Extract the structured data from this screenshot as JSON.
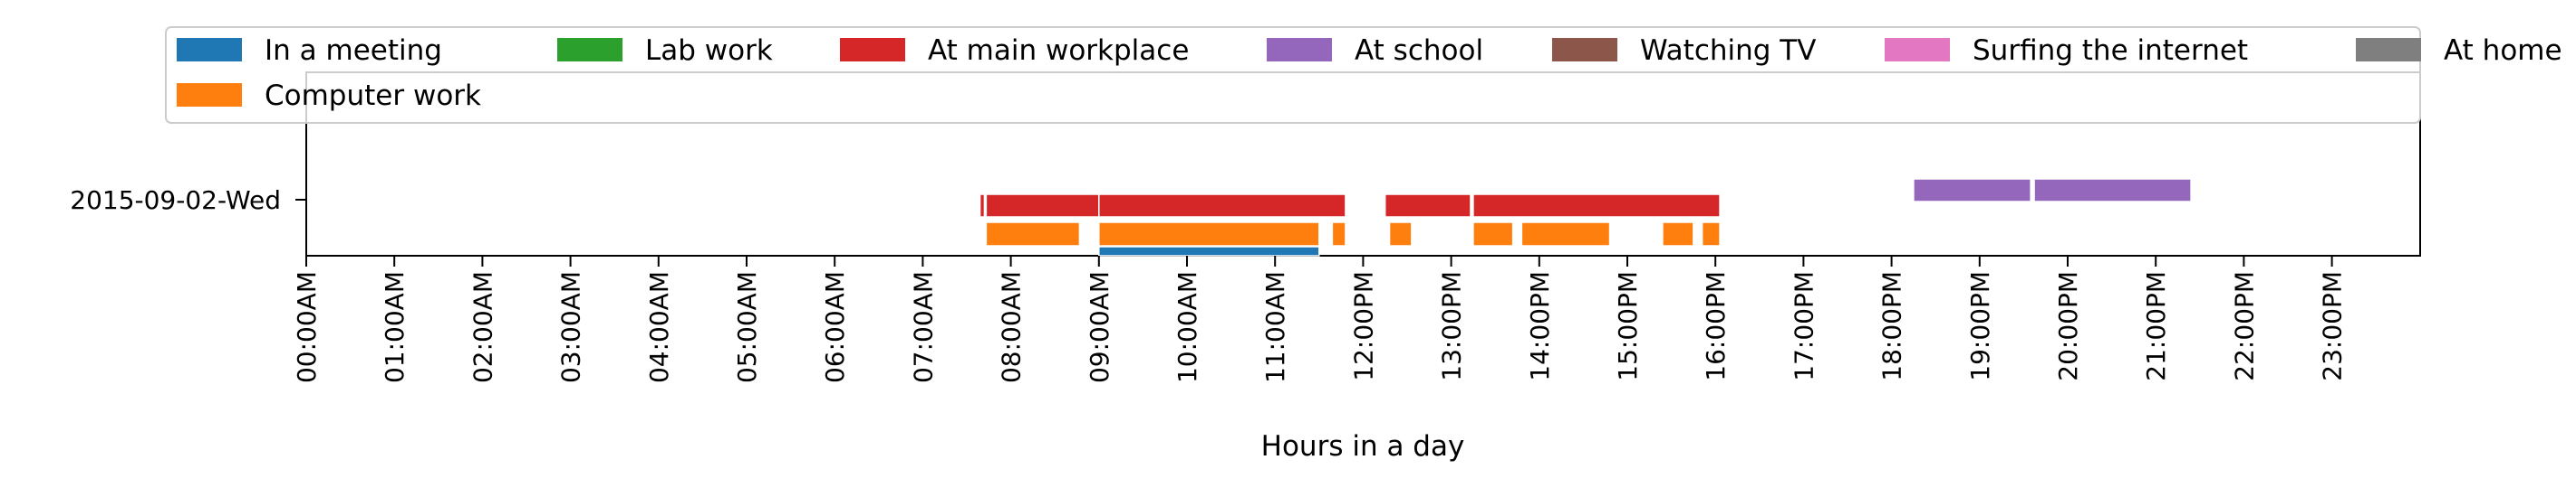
{
  "chart_data": {
    "type": "timeline",
    "title": "",
    "xlabel": "Hours in a day",
    "ylabel": "",
    "xlim": [
      0,
      24
    ],
    "day_label": "2015-09-02-Wed",
    "x_tick_labels": [
      "00:00AM",
      "01:00AM",
      "02:00AM",
      "03:00AM",
      "04:00AM",
      "05:00AM",
      "06:00AM",
      "07:00AM",
      "08:00AM",
      "09:00AM",
      "10:00AM",
      "11:00AM",
      "12:00PM",
      "13:00PM",
      "14:00PM",
      "15:00PM",
      "16:00PM",
      "17:00PM",
      "18:00PM",
      "19:00PM",
      "20:00PM",
      "21:00PM",
      "22:00PM",
      "23:00PM"
    ],
    "legend_position": "top",
    "grid": false,
    "activities": [
      {
        "label": "In a meeting",
        "color": "#1f77b4",
        "intervals": [
          [
            9.0,
            11.5
          ]
        ]
      },
      {
        "label": "Computer work",
        "color": "#ff7f0e",
        "intervals": [
          [
            7.72,
            8.78
          ],
          [
            9.0,
            11.5
          ],
          [
            11.65,
            11.8
          ],
          [
            12.3,
            12.55
          ],
          [
            13.25,
            13.7
          ],
          [
            13.8,
            14.8
          ],
          [
            15.4,
            15.75
          ],
          [
            15.85,
            16.05
          ]
        ]
      },
      {
        "label": "Lab work",
        "color": "#2ca02c",
        "intervals": []
      },
      {
        "label": "At main workplace",
        "color": "#d62728",
        "intervals": [
          [
            7.65,
            7.7
          ],
          [
            7.72,
            9.0
          ],
          [
            9.0,
            11.8
          ],
          [
            12.25,
            13.22
          ],
          [
            13.25,
            16.05
          ]
        ]
      },
      {
        "label": "At school",
        "color": "#9467bd",
        "intervals": [
          [
            18.25,
            19.58
          ],
          [
            19.62,
            21.4
          ]
        ]
      },
      {
        "label": "Watching TV",
        "color": "#8c564b",
        "intervals": []
      },
      {
        "label": "Surfing the internet",
        "color": "#e377c2",
        "intervals": []
      },
      {
        "label": "At home",
        "color": "#7f7f7f",
        "intervals": []
      }
    ]
  }
}
